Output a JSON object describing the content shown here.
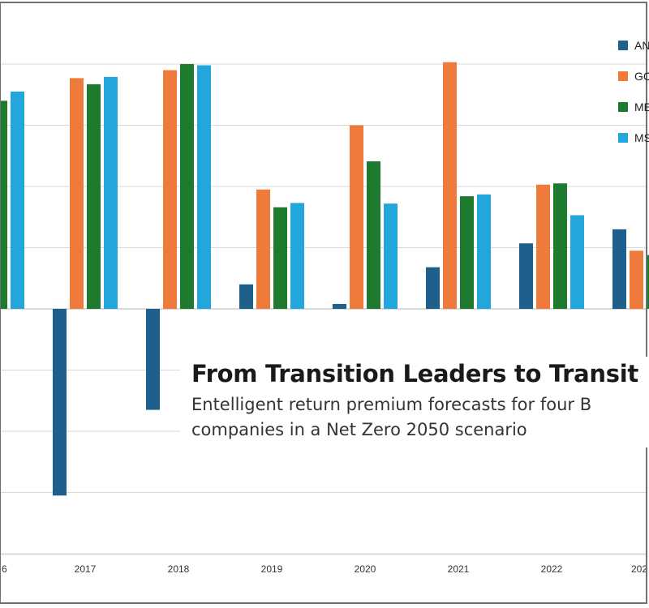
{
  "colors": {
    "background": "#ffffff",
    "border": "#6b7177",
    "grid": "#d9d9d9",
    "zero_line": "#b5b5b5"
  },
  "caption": {
    "title": "From Transition Leaders to Transit",
    "subtitle_line1": "Entelligent return premium forecasts for four B",
    "subtitle_line2": "companies in a Net Zero 2050 scenario"
  },
  "legend": {
    "placement": "top-right",
    "items": [
      {
        "label": "AN",
        "color": "#1f5f8b"
      },
      {
        "label": "GC",
        "color": "#ee7a3b"
      },
      {
        "label": "ME",
        "color": "#1e7a2e"
      },
      {
        "label": "MS",
        "color": "#23a6dc"
      }
    ]
  },
  "chart_data": {
    "type": "bar",
    "title": "From Transition Leaders to Transit",
    "xlabel": "",
    "ylabel": "",
    "categories": [
      "6",
      "2017",
      "2018",
      "2019",
      "2020",
      "2021",
      "2022",
      "202"
    ],
    "ylim": [
      -4,
      4
    ],
    "grid": true,
    "legend": "top-right",
    "series": [
      {
        "name": "AN",
        "color": "#1f5f8b",
        "values": [
          null,
          -3.05,
          -1.65,
          0.4,
          0.08,
          0.68,
          1.07,
          1.3
        ]
      },
      {
        "name": "GC",
        "color": "#ee7a3b",
        "values": [
          null,
          3.77,
          3.9,
          1.95,
          3.0,
          4.03,
          2.03,
          0.95
        ]
      },
      {
        "name": "ME",
        "color": "#1e7a2e",
        "values": [
          3.4,
          3.67,
          4.0,
          1.66,
          2.41,
          1.84,
          2.05,
          0.88
        ]
      },
      {
        "name": "MS",
        "color": "#23a6dc",
        "values": [
          3.55,
          3.79,
          3.98,
          1.73,
          1.72,
          1.87,
          1.53,
          null
        ]
      }
    ]
  }
}
